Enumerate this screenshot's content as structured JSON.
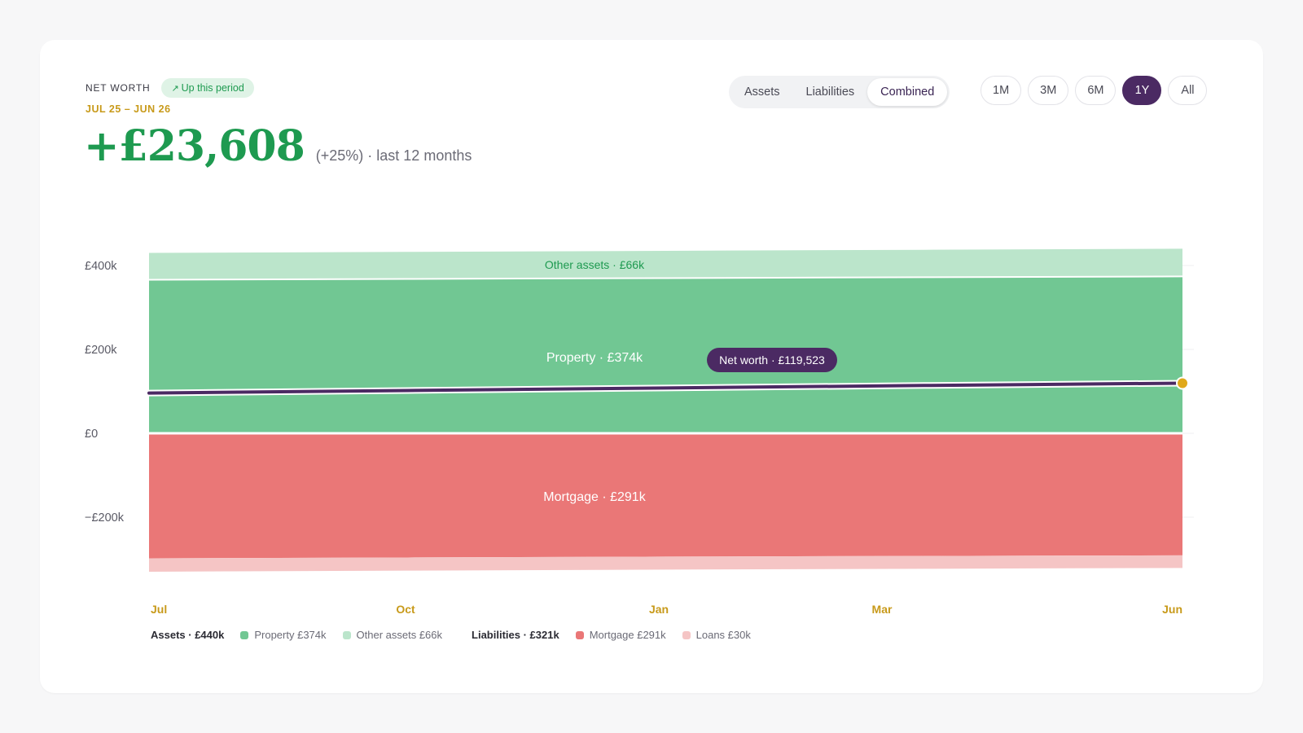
{
  "header": {
    "eyebrow": "NET WORTH",
    "trend_badge": "Up this period",
    "trend_icon": "arrow-up-right-icon",
    "date_range": "JUL 25 – JUN 26",
    "headline_value": "+£23,608",
    "headline_sub": "(+25%) · last 12 months"
  },
  "view_toggle": {
    "options": [
      "Assets",
      "Liabilities",
      "Combined"
    ],
    "selected": "Combined"
  },
  "range_buttons": {
    "options": [
      "1M",
      "3M",
      "6M",
      "1Y",
      "All"
    ],
    "selected": "1Y"
  },
  "colors": {
    "property": "#71c793",
    "other_assets": "#bbe5cb",
    "mortgage": "#ea7777",
    "loans": "#f5c5c5",
    "net_worth_line": "#4b2a63",
    "endpoint": "#e0a81a",
    "positive": "#1e9a50",
    "accent": "#c89a1a"
  },
  "chart_data": {
    "type": "area",
    "x": [
      "Jul",
      "Oct",
      "Jan",
      "Mar",
      "Jun"
    ],
    "ylim": [
      -335000,
      440000
    ],
    "yticks": [
      400000,
      200000,
      0,
      -200000
    ],
    "ytick_labels": [
      "£400k",
      "£200k",
      "£0",
      "−£200k"
    ],
    "series": [
      {
        "name": "Property",
        "stack": "assets",
        "values": [
          366000,
          368000,
          370000,
          372000,
          374000
        ]
      },
      {
        "name": "Other assets",
        "stack": "assets",
        "values": [
          64000,
          64500,
          65000,
          65500,
          66000
        ]
      },
      {
        "name": "Mortgage",
        "stack": "liabilities",
        "values": [
          -298000,
          -296000,
          -294000,
          -292500,
          -291000
        ]
      },
      {
        "name": "Loans",
        "stack": "liabilities",
        "values": [
          -32000,
          -31500,
          -31000,
          -30500,
          -30000
        ]
      },
      {
        "name": "Net worth",
        "type": "line",
        "values": [
          95915,
          102000,
          108000,
          114000,
          119523
        ]
      }
    ],
    "band_labels": {
      "other_assets": "Other assets · £66k",
      "property": "Property · £374k",
      "mortgage": "Mortgage · £291k"
    },
    "tooltip": "Net worth · £119,523",
    "grid": true
  },
  "legend": {
    "assets_title": "Assets · £440k",
    "property": "Property £374k",
    "other_assets": "Other assets £66k",
    "liabilities_title": "Liabilities · £321k",
    "mortgage": "Mortgage £291k",
    "loans": "Loans £30k"
  }
}
